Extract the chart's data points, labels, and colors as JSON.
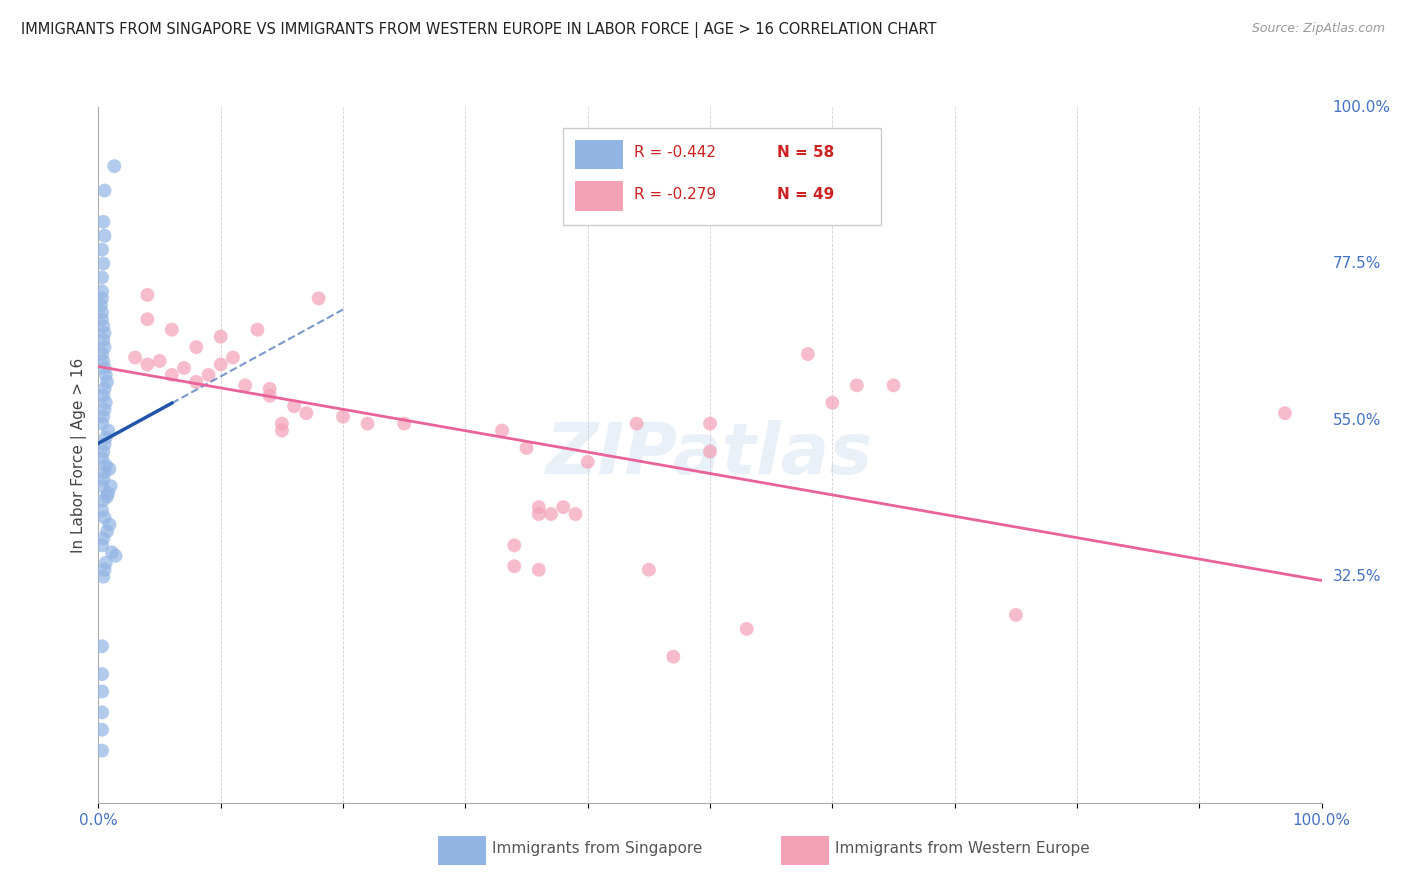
{
  "title": "IMMIGRANTS FROM SINGAPORE VS IMMIGRANTS FROM WESTERN EUROPE IN LABOR FORCE | AGE > 16 CORRELATION CHART",
  "source": "Source: ZipAtlas.com",
  "ylabel": "In Labor Force | Age > 16",
  "xlim": [
    0.0,
    1.0
  ],
  "ylim": [
    0.0,
    1.0
  ],
  "xtick_positions": [
    0.0,
    0.1,
    0.2,
    0.3,
    0.4,
    0.5,
    0.6,
    0.7,
    0.8,
    0.9,
    1.0
  ],
  "xticklabels_show": {
    "0.0": "0.0%",
    "1.0": "100.0%"
  },
  "ytick_right_labels": [
    "100.0%",
    "77.5%",
    "55.0%",
    "32.5%"
  ],
  "ytick_right_values": [
    1.0,
    0.775,
    0.55,
    0.325
  ],
  "singapore_color": "#92b4e3",
  "western_europe_color": "#f4a0b5",
  "singapore_line_color": "#2255aa",
  "western_europe_line_color": "#e8639a",
  "legend_R1": "R = -0.442",
  "legend_N1": "N = 58",
  "legend_R2": "R = -0.279",
  "legend_N2": "N = 49",
  "watermark": "ZIPatlas",
  "singapore_points": [
    [
      0.005,
      0.88
    ],
    [
      0.013,
      0.915
    ],
    [
      0.004,
      0.835
    ],
    [
      0.005,
      0.815
    ],
    [
      0.003,
      0.795
    ],
    [
      0.004,
      0.775
    ],
    [
      0.003,
      0.755
    ],
    [
      0.003,
      0.735
    ],
    [
      0.003,
      0.725
    ],
    [
      0.002,
      0.715
    ],
    [
      0.003,
      0.705
    ],
    [
      0.003,
      0.695
    ],
    [
      0.004,
      0.685
    ],
    [
      0.005,
      0.675
    ],
    [
      0.004,
      0.665
    ],
    [
      0.005,
      0.655
    ],
    [
      0.003,
      0.645
    ],
    [
      0.004,
      0.635
    ],
    [
      0.005,
      0.625
    ],
    [
      0.006,
      0.615
    ],
    [
      0.007,
      0.605
    ],
    [
      0.005,
      0.595
    ],
    [
      0.004,
      0.585
    ],
    [
      0.006,
      0.575
    ],
    [
      0.005,
      0.565
    ],
    [
      0.004,
      0.555
    ],
    [
      0.003,
      0.545
    ],
    [
      0.008,
      0.535
    ],
    [
      0.006,
      0.525
    ],
    [
      0.005,
      0.515
    ],
    [
      0.004,
      0.505
    ],
    [
      0.003,
      0.495
    ],
    [
      0.006,
      0.485
    ],
    [
      0.005,
      0.475
    ],
    [
      0.004,
      0.465
    ],
    [
      0.003,
      0.455
    ],
    [
      0.008,
      0.445
    ],
    [
      0.004,
      0.435
    ],
    [
      0.003,
      0.42
    ],
    [
      0.005,
      0.41
    ],
    [
      0.009,
      0.4
    ],
    [
      0.007,
      0.39
    ],
    [
      0.004,
      0.38
    ],
    [
      0.003,
      0.37
    ],
    [
      0.011,
      0.36
    ],
    [
      0.014,
      0.355
    ],
    [
      0.006,
      0.345
    ],
    [
      0.005,
      0.335
    ],
    [
      0.004,
      0.325
    ],
    [
      0.009,
      0.48
    ],
    [
      0.01,
      0.455
    ],
    [
      0.007,
      0.44
    ],
    [
      0.003,
      0.225
    ],
    [
      0.003,
      0.185
    ],
    [
      0.003,
      0.16
    ],
    [
      0.003,
      0.13
    ],
    [
      0.003,
      0.105
    ],
    [
      0.003,
      0.075
    ]
  ],
  "western_europe_points": [
    [
      0.04,
      0.73
    ],
    [
      0.04,
      0.695
    ],
    [
      0.06,
      0.68
    ],
    [
      0.08,
      0.655
    ],
    [
      0.03,
      0.64
    ],
    [
      0.05,
      0.635
    ],
    [
      0.04,
      0.63
    ],
    [
      0.07,
      0.625
    ],
    [
      0.06,
      0.615
    ],
    [
      0.08,
      0.605
    ],
    [
      0.18,
      0.725
    ],
    [
      0.13,
      0.68
    ],
    [
      0.1,
      0.67
    ],
    [
      0.11,
      0.64
    ],
    [
      0.1,
      0.63
    ],
    [
      0.09,
      0.615
    ],
    [
      0.12,
      0.6
    ],
    [
      0.14,
      0.595
    ],
    [
      0.14,
      0.585
    ],
    [
      0.16,
      0.57
    ],
    [
      0.17,
      0.56
    ],
    [
      0.15,
      0.545
    ],
    [
      0.15,
      0.535
    ],
    [
      0.2,
      0.555
    ],
    [
      0.22,
      0.545
    ],
    [
      0.25,
      0.545
    ],
    [
      0.33,
      0.535
    ],
    [
      0.35,
      0.51
    ],
    [
      0.36,
      0.425
    ],
    [
      0.36,
      0.415
    ],
    [
      0.38,
      0.425
    ],
    [
      0.39,
      0.415
    ],
    [
      0.4,
      0.49
    ],
    [
      0.44,
      0.545
    ],
    [
      0.5,
      0.545
    ],
    [
      0.5,
      0.505
    ],
    [
      0.58,
      0.645
    ],
    [
      0.6,
      0.575
    ],
    [
      0.62,
      0.6
    ],
    [
      0.65,
      0.6
    ],
    [
      0.34,
      0.37
    ],
    [
      0.34,
      0.34
    ],
    [
      0.36,
      0.335
    ],
    [
      0.37,
      0.415
    ],
    [
      0.53,
      0.25
    ],
    [
      0.75,
      0.27
    ],
    [
      0.97,
      0.56
    ],
    [
      0.47,
      0.21
    ],
    [
      0.45,
      0.335
    ]
  ]
}
